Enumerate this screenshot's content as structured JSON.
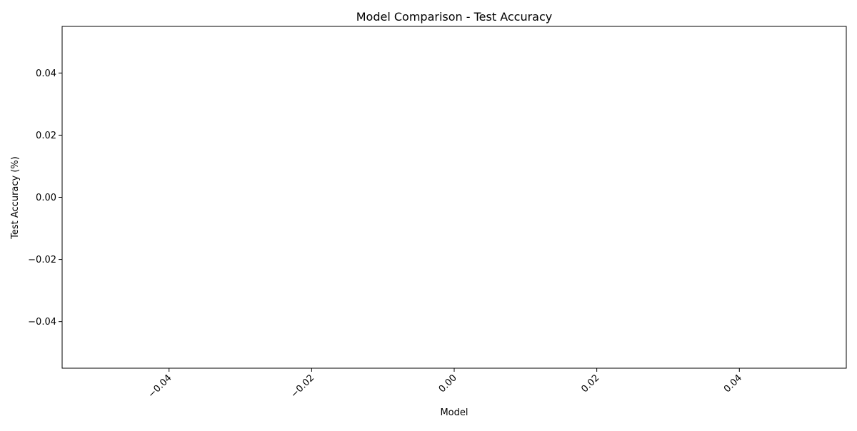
{
  "chart_data": {
    "type": "bar",
    "title": "Model Comparison - Test Accuracy",
    "xlabel": "Model",
    "ylabel": "Test Accuracy (%)",
    "categories": [],
    "values": [],
    "xlim": [
      -0.055,
      0.055
    ],
    "ylim": [
      -0.055,
      0.055
    ],
    "xticks": [
      -0.04,
      -0.02,
      0.0,
      0.02,
      0.04
    ],
    "xtick_labels": [
      "−0.04",
      "−0.02",
      "0.00",
      "0.02",
      "0.04"
    ],
    "xtick_rotation": 45,
    "yticks": [
      -0.04,
      -0.02,
      0.0,
      0.02,
      0.04
    ],
    "ytick_labels": [
      "−0.04",
      "−0.02",
      "0.00",
      "0.02",
      "0.04"
    ],
    "grid": false,
    "legend": "none",
    "colors": {
      "axis": "#000000",
      "background": "#ffffff"
    }
  }
}
